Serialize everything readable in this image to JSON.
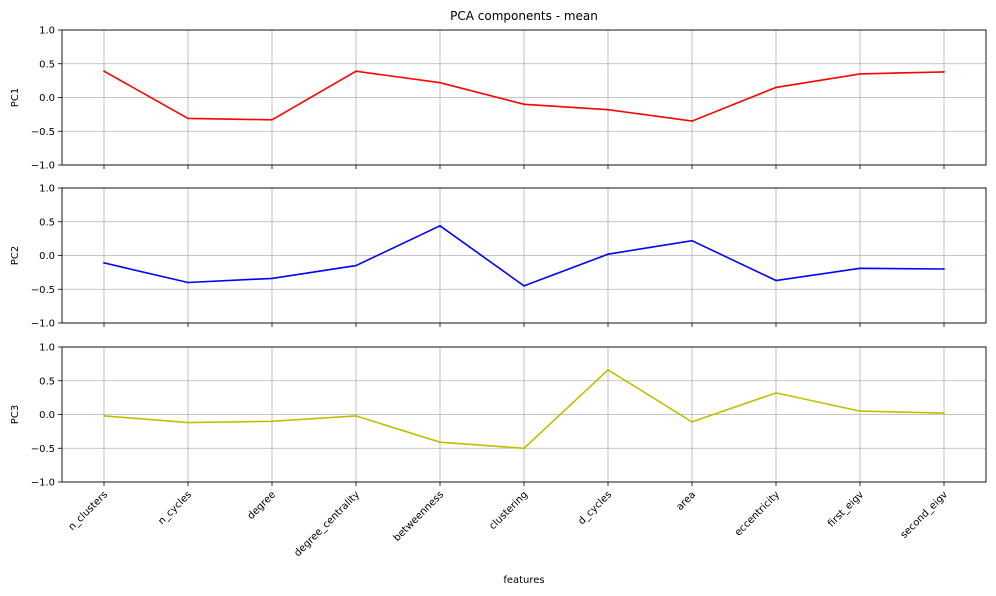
{
  "chart_data": {
    "type": "line",
    "title": "PCA components - mean",
    "xlabel": "features",
    "categories": [
      "n_clusters",
      "n_cycles",
      "degree",
      "degree_centrality",
      "betweenness",
      "clustering",
      "d_cycles",
      "area",
      "eccentricity",
      "first_eigv",
      "second_eigv"
    ],
    "ylim": [
      -1.0,
      1.0
    ],
    "yticks": [
      -1.0,
      -0.5,
      0.0,
      0.5,
      1.0
    ],
    "ytick_labels": [
      "−1.0",
      "−0.5",
      "0.0",
      "0.5",
      "1.0"
    ],
    "grid": true,
    "series": [
      {
        "name": "PC1",
        "ylabel": "PC1",
        "color": "#ff0000",
        "values": [
          0.39,
          -0.31,
          -0.33,
          0.39,
          0.22,
          -0.1,
          -0.18,
          -0.35,
          0.15,
          0.35,
          0.38
        ]
      },
      {
        "name": "PC2",
        "ylabel": "PC2",
        "color": "#0000ff",
        "values": [
          -0.11,
          -0.4,
          -0.34,
          -0.15,
          0.44,
          -0.45,
          0.02,
          0.22,
          -0.37,
          -0.19,
          -0.2
        ]
      },
      {
        "name": "PC3",
        "ylabel": "PC3",
        "color": "#bfbf00",
        "values": [
          -0.02,
          -0.12,
          -0.1,
          -0.02,
          -0.41,
          -0.5,
          0.66,
          -0.11,
          0.32,
          0.05,
          0.02
        ]
      }
    ]
  }
}
